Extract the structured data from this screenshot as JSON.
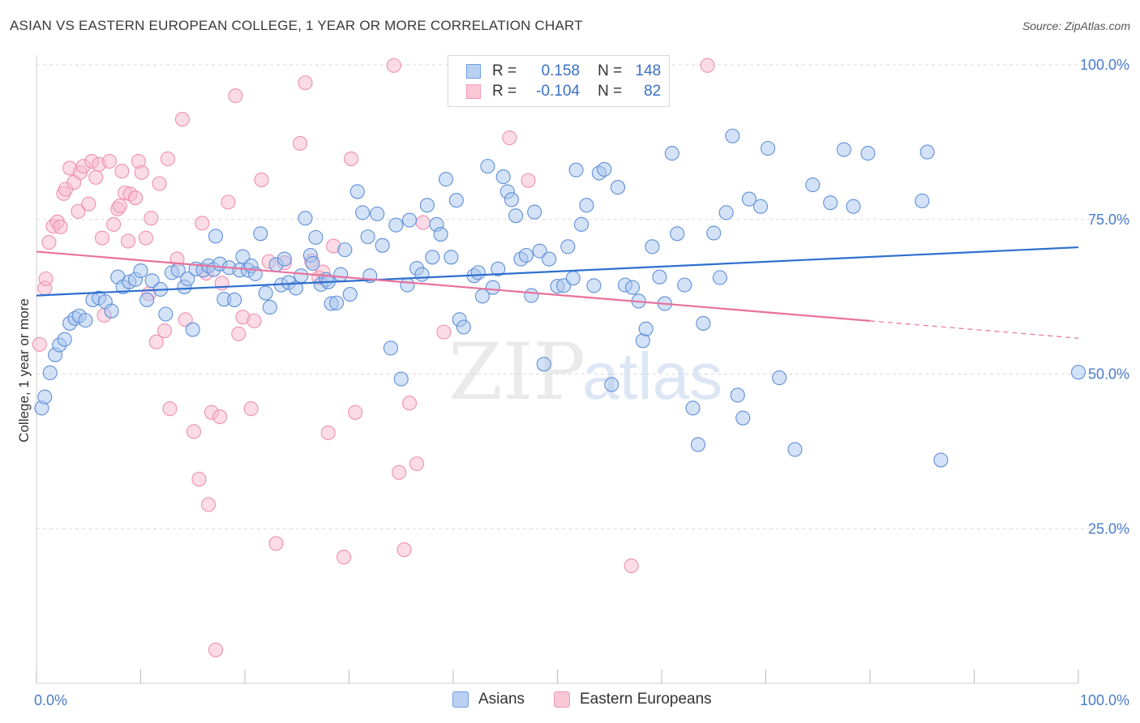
{
  "title": "ASIAN VS EASTERN EUROPEAN COLLEGE, 1 YEAR OR MORE CORRELATION CHART",
  "source": "Source: ZipAtlas.com",
  "watermark": {
    "zip": "ZIP",
    "atlas": "atlas"
  },
  "legend": {
    "r_label": "R =",
    "n_label": "N =",
    "rows": [
      {
        "r": "0.158",
        "n": "148"
      },
      {
        "r": "-0.104",
        "n": "82"
      }
    ]
  },
  "chart_data": {
    "type": "scatter",
    "title": "ASIAN VS EASTERN EUROPEAN COLLEGE, 1 YEAR OR MORE CORRELATION CHART",
    "xlabel": "",
    "ylabel": "College, 1 year or more",
    "xlim": [
      0,
      100
    ],
    "ylim": [
      0,
      100
    ],
    "x_tick_labels": [
      "0.0%",
      "100.0%"
    ],
    "y_tick_labels": [
      "25.0%",
      "50.0%",
      "75.0%",
      "100.0%"
    ],
    "y_ticks": [
      25,
      50,
      75,
      100
    ],
    "grid": true,
    "colors": {
      "asians": "#6f9fe0",
      "eastern_europeans": "#f09ab8",
      "asians_line": "#2e6fd0",
      "eastern_line": "#e8729c"
    },
    "series": [
      {
        "name": "Asians",
        "trend": {
          "x0": 0,
          "y0": 62.7,
          "x1": 100,
          "y1": 70.5
        },
        "points": [
          [
            0.5,
            44.5
          ],
          [
            0.8,
            46.3
          ],
          [
            1.3,
            50.2
          ],
          [
            1.8,
            53.1
          ],
          [
            2.2,
            54.7
          ],
          [
            2.7,
            55.6
          ],
          [
            3.2,
            58.2
          ],
          [
            3.7,
            59.0
          ],
          [
            4.1,
            59.4
          ],
          [
            4.7,
            58.7
          ],
          [
            5.4,
            62.0
          ],
          [
            6.0,
            62.3
          ],
          [
            6.6,
            61.7
          ],
          [
            7.2,
            60.2
          ],
          [
            7.8,
            65.7
          ],
          [
            8.3,
            64.1
          ],
          [
            8.9,
            64.9
          ],
          [
            9.5,
            65.3
          ],
          [
            10.0,
            66.7
          ],
          [
            10.6,
            62.0
          ],
          [
            11.1,
            65.1
          ],
          [
            11.9,
            63.7
          ],
          [
            12.4,
            59.7
          ],
          [
            13.0,
            66.4
          ],
          [
            13.6,
            66.8
          ],
          [
            14.2,
            64.1
          ],
          [
            14.5,
            65.4
          ],
          [
            15.0,
            57.2
          ],
          [
            15.3,
            67.0
          ],
          [
            16.0,
            66.8
          ],
          [
            16.5,
            67.5
          ],
          [
            17.0,
            66.9
          ],
          [
            17.2,
            72.3
          ],
          [
            17.6,
            67.8
          ],
          [
            18.0,
            62.1
          ],
          [
            18.5,
            67.2
          ],
          [
            19.0,
            62.0
          ],
          [
            19.5,
            66.8
          ],
          [
            19.8,
            69.0
          ],
          [
            20.3,
            66.8
          ],
          [
            20.6,
            67.5
          ],
          [
            21.0,
            66.2
          ],
          [
            21.5,
            72.7
          ],
          [
            22.0,
            63.1
          ],
          [
            22.4,
            60.8
          ],
          [
            23.0,
            67.7
          ],
          [
            23.5,
            64.4
          ],
          [
            23.8,
            68.6
          ],
          [
            24.2,
            64.8
          ],
          [
            24.9,
            63.9
          ],
          [
            25.4,
            65.9
          ],
          [
            25.8,
            75.2
          ],
          [
            26.3,
            69.2
          ],
          [
            26.5,
            67.9
          ],
          [
            26.8,
            72.1
          ],
          [
            27.3,
            64.5
          ],
          [
            27.8,
            65.3
          ],
          [
            28.0,
            64.9
          ],
          [
            28.3,
            61.4
          ],
          [
            28.8,
            61.5
          ],
          [
            29.2,
            66.1
          ],
          [
            29.6,
            70.1
          ],
          [
            30.1,
            62.9
          ],
          [
            30.8,
            79.5
          ],
          [
            31.3,
            76.1
          ],
          [
            31.8,
            72.2
          ],
          [
            32.0,
            65.9
          ],
          [
            32.7,
            75.9
          ],
          [
            33.2,
            70.8
          ],
          [
            34.0,
            54.2
          ],
          [
            34.5,
            74.1
          ],
          [
            35.0,
            49.2
          ],
          [
            35.6,
            64.4
          ],
          [
            35.8,
            74.9
          ],
          [
            36.5,
            67.1
          ],
          [
            37.0,
            66.1
          ],
          [
            37.5,
            77.3
          ],
          [
            38.0,
            68.9
          ],
          [
            38.4,
            74.2
          ],
          [
            38.8,
            72.6
          ],
          [
            39.3,
            81.5
          ],
          [
            39.8,
            68.9
          ],
          [
            40.3,
            78.1
          ],
          [
            40.6,
            58.8
          ],
          [
            41.0,
            57.6
          ],
          [
            42.0,
            65.9
          ],
          [
            42.4,
            66.4
          ],
          [
            42.8,
            62.6
          ],
          [
            43.3,
            83.6
          ],
          [
            43.8,
            64.0
          ],
          [
            44.3,
            67.0
          ],
          [
            44.8,
            81.9
          ],
          [
            45.2,
            79.5
          ],
          [
            45.6,
            78.2
          ],
          [
            46.0,
            75.6
          ],
          [
            46.5,
            68.6
          ],
          [
            47.0,
            69.2
          ],
          [
            47.5,
            62.7
          ],
          [
            47.8,
            76.2
          ],
          [
            48.3,
            69.9
          ],
          [
            48.7,
            51.6
          ],
          [
            49.2,
            68.6
          ],
          [
            50.0,
            64.2
          ],
          [
            50.6,
            64.3
          ],
          [
            51.0,
            70.6
          ],
          [
            51.5,
            65.5
          ],
          [
            51.8,
            83.0
          ],
          [
            52.3,
            74.2
          ],
          [
            52.8,
            77.3
          ],
          [
            53.5,
            64.3
          ],
          [
            54.0,
            82.5
          ],
          [
            54.5,
            83.1
          ],
          [
            55.2,
            48.3
          ],
          [
            55.8,
            80.2
          ],
          [
            56.5,
            64.4
          ],
          [
            57.2,
            64.0
          ],
          [
            57.8,
            61.8
          ],
          [
            58.2,
            55.4
          ],
          [
            58.5,
            57.3
          ],
          [
            59.1,
            70.6
          ],
          [
            59.8,
            65.7
          ],
          [
            60.3,
            61.4
          ],
          [
            61.0,
            85.7
          ],
          [
            61.5,
            72.7
          ],
          [
            62.2,
            64.4
          ],
          [
            63.0,
            44.5
          ],
          [
            63.5,
            38.6
          ],
          [
            64.0,
            58.2
          ],
          [
            65.0,
            72.8
          ],
          [
            65.6,
            65.6
          ],
          [
            66.2,
            76.1
          ],
          [
            66.8,
            88.5
          ],
          [
            67.3,
            46.6
          ],
          [
            67.8,
            42.9
          ],
          [
            68.4,
            78.3
          ],
          [
            69.5,
            77.1
          ],
          [
            70.2,
            86.5
          ],
          [
            71.3,
            49.4
          ],
          [
            72.8,
            37.8
          ],
          [
            74.5,
            80.6
          ],
          [
            76.2,
            77.7
          ],
          [
            77.5,
            86.3
          ],
          [
            78.4,
            77.1
          ],
          [
            79.8,
            85.7
          ],
          [
            85.0,
            78.0
          ],
          [
            85.5,
            85.9
          ],
          [
            86.8,
            36.1
          ],
          [
            100.0,
            50.3
          ]
        ]
      },
      {
        "name": "Eastern Europeans",
        "trend": {
          "x0": 0,
          "y0": 69.8,
          "x1": 80,
          "y1": 58.6,
          "dash_to_x": 100,
          "dash_to_y": 55.8
        },
        "points": [
          [
            0.3,
            54.8
          ],
          [
            0.8,
            63.9
          ],
          [
            0.9,
            65.4
          ],
          [
            1.2,
            71.3
          ],
          [
            1.6,
            73.9
          ],
          [
            2.0,
            74.6
          ],
          [
            2.3,
            73.8
          ],
          [
            2.6,
            79.2
          ],
          [
            2.8,
            79.9
          ],
          [
            3.2,
            83.3
          ],
          [
            3.6,
            81.0
          ],
          [
            4.0,
            76.3
          ],
          [
            4.2,
            82.6
          ],
          [
            4.5,
            83.6
          ],
          [
            5.0,
            77.5
          ],
          [
            5.3,
            84.4
          ],
          [
            5.7,
            81.8
          ],
          [
            6.0,
            83.9
          ],
          [
            6.3,
            72.0
          ],
          [
            6.5,
            59.5
          ],
          [
            7.0,
            84.4
          ],
          [
            7.4,
            74.2
          ],
          [
            7.8,
            76.7
          ],
          [
            8.0,
            77.2
          ],
          [
            8.2,
            82.8
          ],
          [
            8.5,
            79.3
          ],
          [
            8.8,
            71.5
          ],
          [
            9.0,
            79.1
          ],
          [
            9.5,
            78.5
          ],
          [
            9.8,
            84.4
          ],
          [
            10.1,
            82.6
          ],
          [
            10.5,
            72.0
          ],
          [
            10.8,
            63.0
          ],
          [
            11.0,
            75.2
          ],
          [
            11.5,
            55.2
          ],
          [
            11.8,
            80.8
          ],
          [
            12.3,
            57.0
          ],
          [
            12.6,
            84.8
          ],
          [
            12.8,
            44.4
          ],
          [
            13.5,
            68.6
          ],
          [
            14.0,
            91.2
          ],
          [
            14.3,
            58.8
          ],
          [
            15.1,
            40.7
          ],
          [
            15.6,
            33.0
          ],
          [
            15.9,
            74.4
          ],
          [
            16.3,
            66.3
          ],
          [
            16.5,
            28.9
          ],
          [
            16.8,
            43.8
          ],
          [
            17.2,
            5.4
          ],
          [
            17.6,
            43.1
          ],
          [
            17.8,
            64.7
          ],
          [
            18.4,
            77.8
          ],
          [
            19.1,
            95.0
          ],
          [
            19.4,
            56.5
          ],
          [
            19.8,
            59.2
          ],
          [
            20.6,
            44.4
          ],
          [
            20.9,
            58.6
          ],
          [
            21.6,
            81.4
          ],
          [
            22.3,
            68.2
          ],
          [
            23.0,
            22.6
          ],
          [
            23.8,
            68.0
          ],
          [
            25.3,
            87.3
          ],
          [
            25.8,
            97.1
          ],
          [
            26.4,
            68.3
          ],
          [
            27.1,
            65.6
          ],
          [
            27.5,
            66.5
          ],
          [
            28.0,
            40.5
          ],
          [
            28.5,
            70.7
          ],
          [
            29.5,
            20.4
          ],
          [
            30.2,
            84.8
          ],
          [
            30.6,
            43.8
          ],
          [
            34.3,
            99.9
          ],
          [
            34.8,
            34.1
          ],
          [
            35.3,
            21.6
          ],
          [
            35.8,
            45.3
          ],
          [
            36.5,
            35.5
          ],
          [
            37.1,
            74.5
          ],
          [
            39.1,
            56.8
          ],
          [
            45.4,
            88.2
          ],
          [
            47.2,
            81.3
          ],
          [
            57.1,
            19.0
          ],
          [
            64.4,
            99.9
          ]
        ]
      }
    ]
  }
}
